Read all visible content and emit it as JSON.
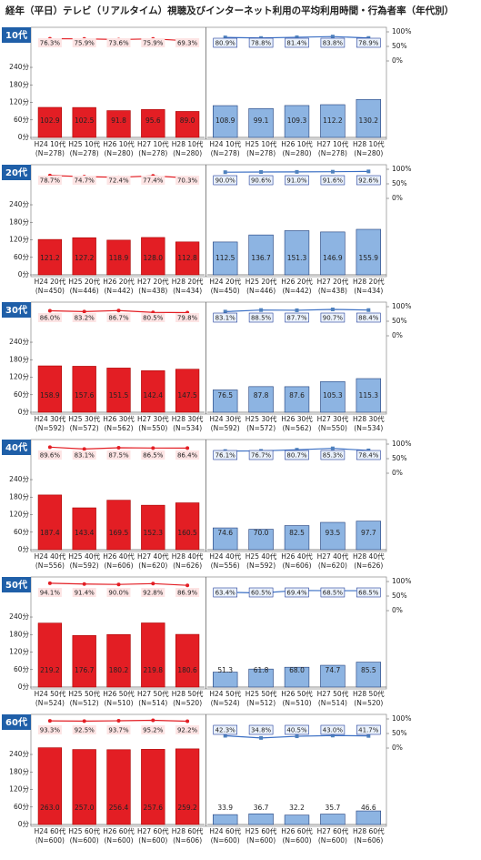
{
  "title": "経年（平日）テレビ（リアルタイム）視聴及びインターネット利用の平均利用時間・行為者率（年代別）",
  "chart_data": [
    {
      "type": "bar_line",
      "label": "10代",
      "categories": [
        "H24 10代",
        "H25 10代",
        "H26 10代",
        "H27 10代",
        "H28 10代"
      ],
      "n_labels": [
        "(N=278)",
        "(N=278)",
        "(N=280)",
        "(N=278)",
        "(N=280)"
      ],
      "ylim": [
        0,
        270
      ],
      "yticks": [
        {
          "value": 0,
          "label": "0分"
        },
        {
          "value": 60,
          "label": "60分"
        },
        {
          "value": 120,
          "label": "120分"
        },
        {
          "value": 180,
          "label": "180分"
        },
        {
          "value": 240,
          "label": "240分"
        }
      ],
      "y2lim": [
        0,
        100
      ],
      "y2ticks": [
        {
          "value": 0,
          "label": "0%"
        },
        {
          "value": 50,
          "label": "50%"
        },
        {
          "value": 100,
          "label": "100%"
        }
      ],
      "series": [
        {
          "color": "#e31e24",
          "line_color": "#e31e24",
          "values": [
            102.9,
            102.5,
            91.8,
            95.6,
            89.0
          ],
          "value_labels": [
            "102.9",
            "102.5",
            "91.8",
            "95.6",
            "89.0"
          ],
          "rates": [
            76.3,
            75.9,
            73.6,
            75.9,
            69.3
          ],
          "rate_labels": [
            "76.3%",
            "75.9%",
            "73.6%",
            "75.9%",
            "69.3%"
          ]
        },
        {
          "color": "#8db4e2",
          "line_color": "#3a6fc4",
          "values": [
            108.9,
            99.1,
            109.3,
            112.2,
            130.2
          ],
          "value_labels": [
            "108.9",
            "99.1",
            "109.3",
            "112.2",
            "130.2"
          ],
          "rates": [
            80.9,
            78.8,
            81.4,
            83.8,
            78.9
          ],
          "rate_labels": [
            "80.9%",
            "78.8%",
            "81.4%",
            "83.8%",
            "78.9%"
          ]
        }
      ]
    },
    {
      "type": "bar_line",
      "label": "20代",
      "categories": [
        "H24 20代",
        "H25 20代",
        "H26 20代",
        "H27 20代",
        "H28 20代"
      ],
      "n_labels": [
        "(N=450)",
        "(N=446)",
        "(N=442)",
        "(N=438)",
        "(N=434)"
      ],
      "ylim": [
        0,
        270
      ],
      "yticks": [
        {
          "value": 0,
          "label": "0分"
        },
        {
          "value": 60,
          "label": "60分"
        },
        {
          "value": 120,
          "label": "120分"
        },
        {
          "value": 180,
          "label": "180分"
        },
        {
          "value": 240,
          "label": "240分"
        }
      ],
      "y2lim": [
        0,
        100
      ],
      "y2ticks": [
        {
          "value": 0,
          "label": "0%"
        },
        {
          "value": 50,
          "label": "50%"
        },
        {
          "value": 100,
          "label": "100%"
        }
      ],
      "series": [
        {
          "color": "#e31e24",
          "line_color": "#e31e24",
          "values": [
            121.2,
            127.2,
            118.9,
            128.0,
            112.8
          ],
          "value_labels": [
            "121.2",
            "127.2",
            "118.9",
            "128.0",
            "112.8"
          ],
          "rates": [
            78.7,
            74.7,
            72.4,
            77.4,
            70.3
          ],
          "rate_labels": [
            "78.7%",
            "74.7%",
            "72.4%",
            "77.4%",
            "70.3%"
          ]
        },
        {
          "color": "#8db4e2",
          "line_color": "#3a6fc4",
          "values": [
            112.5,
            136.7,
            151.3,
            146.9,
            155.9
          ],
          "value_labels": [
            "112.5",
            "136.7",
            "151.3",
            "146.9",
            "155.9"
          ],
          "rates": [
            90.0,
            90.6,
            91.0,
            91.6,
            92.6
          ],
          "rate_labels": [
            "90.0%",
            "90.6%",
            "91.0%",
            "91.6%",
            "92.6%"
          ]
        }
      ]
    },
    {
      "type": "bar_line",
      "label": "30代",
      "categories": [
        "H24 30代",
        "H25 30代",
        "H26 30代",
        "H27 30代",
        "H28 30代"
      ],
      "n_labels": [
        "(N=592)",
        "(N=572)",
        "(N=562)",
        "(N=550)",
        "(N=534)"
      ],
      "ylim": [
        0,
        270
      ],
      "yticks": [
        {
          "value": 0,
          "label": "0分"
        },
        {
          "value": 60,
          "label": "60分"
        },
        {
          "value": 120,
          "label": "120分"
        },
        {
          "value": 180,
          "label": "180分"
        },
        {
          "value": 240,
          "label": "240分"
        }
      ],
      "y2lim": [
        0,
        100
      ],
      "y2ticks": [
        {
          "value": 0,
          "label": "0%"
        },
        {
          "value": 50,
          "label": "50%"
        },
        {
          "value": 100,
          "label": "100%"
        }
      ],
      "series": [
        {
          "color": "#e31e24",
          "line_color": "#e31e24",
          "values": [
            158.9,
            157.6,
            151.5,
            142.4,
            147.5
          ],
          "value_labels": [
            "158.9",
            "157.6",
            "151.5",
            "142.4",
            "147.5"
          ],
          "rates": [
            86.0,
            83.2,
            86.7,
            80.5,
            79.8
          ],
          "rate_labels": [
            "86.0%",
            "83.2%",
            "86.7%",
            "80.5%",
            "79.8%"
          ]
        },
        {
          "color": "#8db4e2",
          "line_color": "#3a6fc4",
          "values": [
            76.5,
            87.8,
            87.6,
            105.3,
            115.3
          ],
          "value_labels": [
            "76.5",
            "87.8",
            "87.6",
            "105.3",
            "115.3"
          ],
          "rates": [
            83.1,
            88.5,
            87.7,
            90.7,
            88.4
          ],
          "rate_labels": [
            "83.1%",
            "88.5%",
            "87.7%",
            "90.7%",
            "88.4%"
          ]
        }
      ]
    },
    {
      "type": "bar_line",
      "label": "40代",
      "categories": [
        "H24 40代",
        "H25 40代",
        "H26 40代",
        "H27 40代",
        "H28 40代"
      ],
      "n_labels": [
        "(N=556)",
        "(N=592)",
        "(N=606)",
        "(N=620)",
        "(N=626)"
      ],
      "ylim": [
        0,
        270
      ],
      "yticks": [
        {
          "value": 0,
          "label": "0分"
        },
        {
          "value": 60,
          "label": "60分"
        },
        {
          "value": 120,
          "label": "120分"
        },
        {
          "value": 180,
          "label": "180分"
        },
        {
          "value": 240,
          "label": "240分"
        }
      ],
      "y2lim": [
        0,
        100
      ],
      "y2ticks": [
        {
          "value": 0,
          "label": "0%"
        },
        {
          "value": 50,
          "label": "50%"
        },
        {
          "value": 100,
          "label": "100%"
        }
      ],
      "series": [
        {
          "color": "#e31e24",
          "line_color": "#e31e24",
          "values": [
            187.4,
            143.4,
            169.5,
            152.3,
            160.5
          ],
          "value_labels": [
            "187.4",
            "143.4",
            "169.5",
            "152.3",
            "160.5"
          ],
          "rates": [
            89.6,
            83.1,
            87.5,
            86.5,
            86.4
          ],
          "rate_labels": [
            "89.6%",
            "83.1%",
            "87.5%",
            "86.5%",
            "86.4%"
          ]
        },
        {
          "color": "#8db4e2",
          "line_color": "#3a6fc4",
          "values": [
            74.6,
            70.0,
            82.5,
            93.5,
            97.7
          ],
          "value_labels": [
            "74.6",
            "70.0",
            "82.5",
            "93.5",
            "97.7"
          ],
          "rates": [
            76.1,
            76.7,
            80.7,
            85.3,
            78.4
          ],
          "rate_labels": [
            "76.1%",
            "76.7%",
            "80.7%",
            "85.3%",
            "78.4%"
          ]
        }
      ]
    },
    {
      "type": "bar_line",
      "label": "50代",
      "categories": [
        "H24 50代",
        "H25 50代",
        "H26 50代",
        "H27 50代",
        "H28 50代"
      ],
      "n_labels": [
        "(N=524)",
        "(N=512)",
        "(N=510)",
        "(N=514)",
        "(N=520)"
      ],
      "ylim": [
        0,
        270
      ],
      "yticks": [
        {
          "value": 0,
          "label": "0分"
        },
        {
          "value": 60,
          "label": "60分"
        },
        {
          "value": 120,
          "label": "120分"
        },
        {
          "value": 180,
          "label": "180分"
        },
        {
          "value": 240,
          "label": "240分"
        }
      ],
      "y2lim": [
        0,
        100
      ],
      "y2ticks": [
        {
          "value": 0,
          "label": "0%"
        },
        {
          "value": 50,
          "label": "50%"
        },
        {
          "value": 100,
          "label": "100%"
        }
      ],
      "series": [
        {
          "color": "#e31e24",
          "line_color": "#e31e24",
          "values": [
            219.2,
            176.7,
            180.2,
            219.8,
            180.6
          ],
          "value_labels": [
            "219.2",
            "176.7",
            "180.2",
            "219.8",
            "180.6"
          ],
          "rates": [
            94.1,
            91.4,
            90.0,
            92.8,
            86.9
          ],
          "rate_labels": [
            "94.1%",
            "91.4%",
            "90.0%",
            "92.8%",
            "86.9%"
          ]
        },
        {
          "color": "#8db4e2",
          "line_color": "#3a6fc4",
          "values": [
            51.3,
            61.8,
            68.0,
            74.7,
            85.5
          ],
          "value_labels": [
            "51.3",
            "61.8",
            "68.0",
            "74.7",
            "85.5"
          ],
          "rates": [
            63.4,
            60.5,
            69.4,
            68.5,
            68.5
          ],
          "rate_labels": [
            "63.4%",
            "60.5%",
            "69.4%",
            "68.5%",
            "68.5%"
          ]
        }
      ]
    },
    {
      "type": "bar_line",
      "label": "60代",
      "categories": [
        "H24 60代",
        "H25 60代",
        "H26 60代",
        "H27 60代",
        "H28 60代"
      ],
      "n_labels": [
        "(N=600)",
        "(N=600)",
        "(N=600)",
        "(N=600)",
        "(N=606)"
      ],
      "ylim": [
        0,
        270
      ],
      "yticks": [
        {
          "value": 0,
          "label": "0分"
        },
        {
          "value": 60,
          "label": "60分"
        },
        {
          "value": 120,
          "label": "120分"
        },
        {
          "value": 180,
          "label": "180分"
        },
        {
          "value": 240,
          "label": "240分"
        }
      ],
      "y2lim": [
        0,
        100
      ],
      "y2ticks": [
        {
          "value": 0,
          "label": "0%"
        },
        {
          "value": 50,
          "label": "50%"
        },
        {
          "value": 100,
          "label": "100%"
        }
      ],
      "series": [
        {
          "color": "#e31e24",
          "line_color": "#e31e24",
          "values": [
            263.0,
            257.0,
            256.4,
            257.6,
            259.2
          ],
          "value_labels": [
            "263.0",
            "257.0",
            "256.4",
            "257.6",
            "259.2"
          ],
          "rates": [
            93.3,
            92.5,
            93.7,
            95.2,
            92.2
          ],
          "rate_labels": [
            "93.3%",
            "92.5%",
            "93.7%",
            "95.2%",
            "92.2%"
          ]
        },
        {
          "color": "#8db4e2",
          "line_color": "#3a6fc4",
          "values": [
            33.9,
            36.7,
            32.2,
            35.7,
            46.6
          ],
          "value_labels": [
            "33.9",
            "36.7",
            "32.2",
            "35.7",
            "46.6"
          ],
          "rates": [
            42.3,
            34.8,
            40.5,
            43.0,
            41.7
          ],
          "rate_labels": [
            "42.3%",
            "34.8%",
            "40.5%",
            "43.0%",
            "41.7%"
          ]
        }
      ]
    }
  ]
}
